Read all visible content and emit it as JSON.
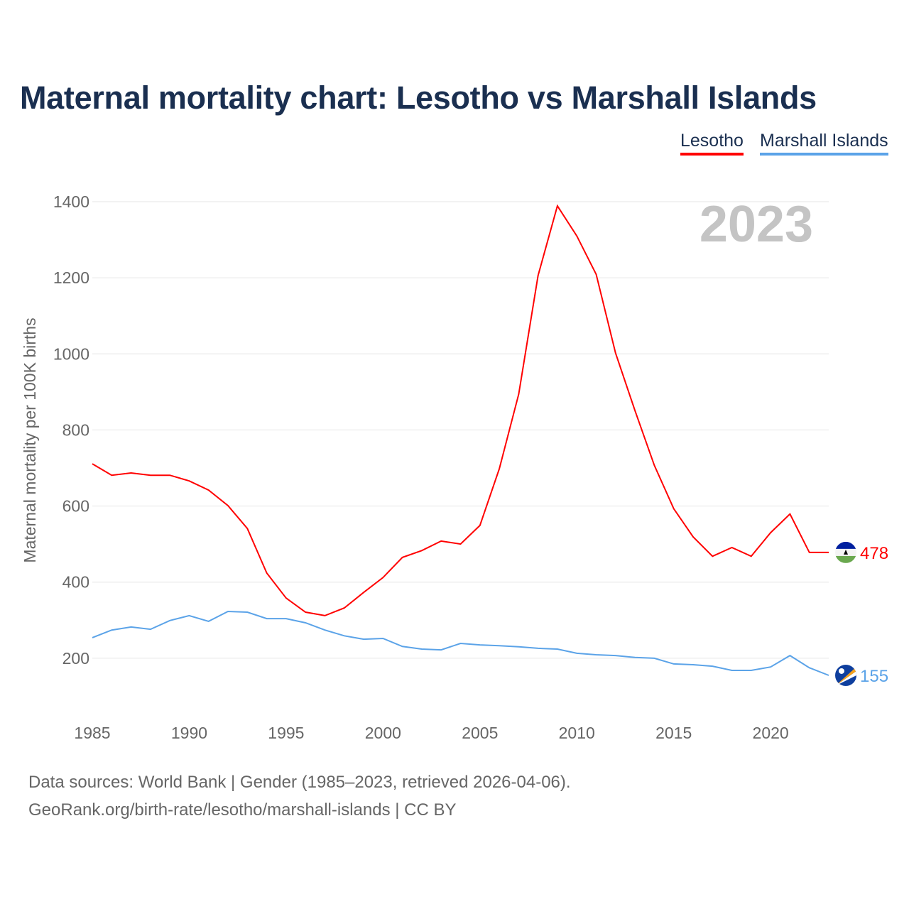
{
  "title": "Maternal mortality chart: Lesotho vs Marshall Islands",
  "footer": {
    "line1": "Data sources: World Bank | Gender (1985–2023, retrieved 2026-04-06).",
    "line2": "GeoRank.org/birth-rate/lesotho/marshall-islands | CC BY"
  },
  "chart_data": {
    "type": "line",
    "title": "Maternal mortality chart: Lesotho vs Marshall Islands",
    "ylabel": "Maternal mortality per 100K births",
    "xlabel": "",
    "year_label": "2023",
    "ylim": [
      0,
      1400
    ],
    "xlim": [
      1985,
      2023
    ],
    "yticks": [
      200,
      400,
      600,
      800,
      1000,
      1200,
      1400
    ],
    "xticks": [
      1985,
      1990,
      1995,
      2000,
      2005,
      2010,
      2015,
      2020
    ],
    "grid": true,
    "legend_position": "top-right",
    "x": [
      1985,
      1986,
      1987,
      1988,
      1989,
      1990,
      1991,
      1992,
      1993,
      1994,
      1995,
      1996,
      1997,
      1998,
      1999,
      2000,
      2001,
      2002,
      2003,
      2004,
      2005,
      2006,
      2007,
      2008,
      2009,
      2010,
      2011,
      2012,
      2013,
      2014,
      2015,
      2016,
      2017,
      2018,
      2019,
      2020,
      2021,
      2022,
      2023
    ],
    "series": [
      {
        "name": "Lesotho",
        "color": "#ff0000",
        "end_label": "478",
        "values": [
          711,
          681,
          687,
          681,
          681,
          666,
          642,
          601,
          541,
          424,
          358,
          321,
          312,
          332,
          373,
          412,
          465,
          483,
          508,
          500,
          549,
          698,
          894,
          1206,
          1389,
          1310,
          1209,
          1002,
          851,
          707,
          593,
          519,
          468,
          491,
          468,
          530,
          579,
          478,
          478
        ]
      },
      {
        "name": "Marshall Islands",
        "color": "#5ba3e8",
        "end_label": "155",
        "values": [
          254,
          274,
          282,
          276,
          299,
          312,
          297,
          323,
          321,
          304,
          304,
          293,
          274,
          259,
          250,
          252,
          231,
          224,
          222,
          239,
          235,
          233,
          230,
          226,
          224,
          213,
          209,
          207,
          202,
          200,
          185,
          183,
          179,
          168,
          168,
          177,
          207,
          175,
          155
        ]
      }
    ]
  }
}
